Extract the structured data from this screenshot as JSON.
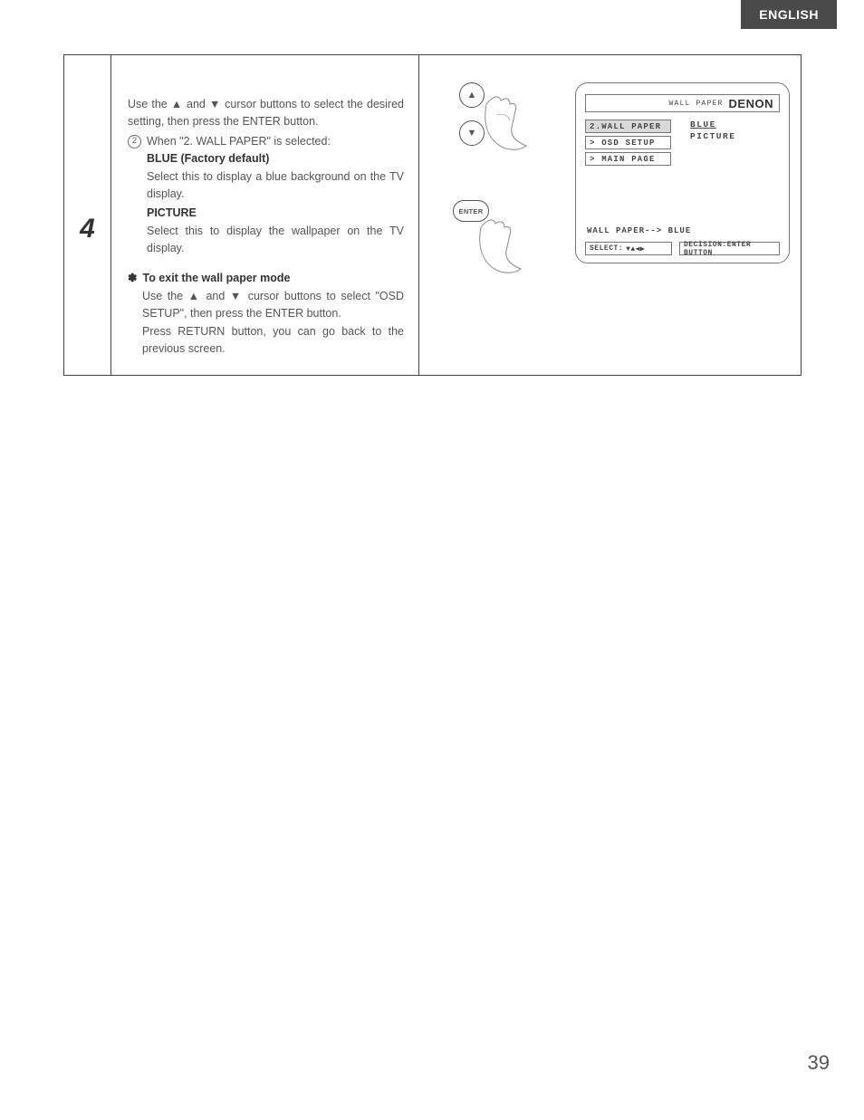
{
  "header": {
    "lang": "ENGLISH"
  },
  "step": {
    "number": "4"
  },
  "text": {
    "intro": "Use the ▲ and ▼ cursor buttons to select the desired setting, then press the ENTER button.",
    "item2_num": "2",
    "item2_label": "When \"2. WALL PAPER\" is selected:",
    "blue_title": "BLUE (Factory default)",
    "blue_body": "Select this to display a blue background on the TV display.",
    "picture_title": "PICTURE",
    "picture_body": "Select this to display the wallpaper on the TV display.",
    "exit_star": "✽",
    "exit_title": "To exit the wall paper mode",
    "exit_body1": "Use the ▲ and ▼ cursor buttons to select \"OSD SETUP\", then press the ENTER button.",
    "exit_body2": "Press RETURN button, you can go back to the previous screen."
  },
  "remote": {
    "up": "▲",
    "down": "▼",
    "enter": "ENTER"
  },
  "osd": {
    "title_small": "WALL PAPER",
    "brand": "DENON",
    "menu": [
      "2.WALL PAPER",
      "> OSD SETUP",
      "> MAIN PAGE"
    ],
    "selected_menu_index": 0,
    "options": [
      "BLUE",
      "PICTURE"
    ],
    "selected_option_index": 0,
    "status": "WALL PAPER--> BLUE",
    "select_label": "SELECT:",
    "select_arrows": "▼▲◀▶",
    "decision_label": "DECISION:ENTER BUTTON"
  },
  "page_number": "39",
  "colors": {
    "header_bg": "#4a4a4a",
    "text": "#555555",
    "border": "#444444"
  }
}
